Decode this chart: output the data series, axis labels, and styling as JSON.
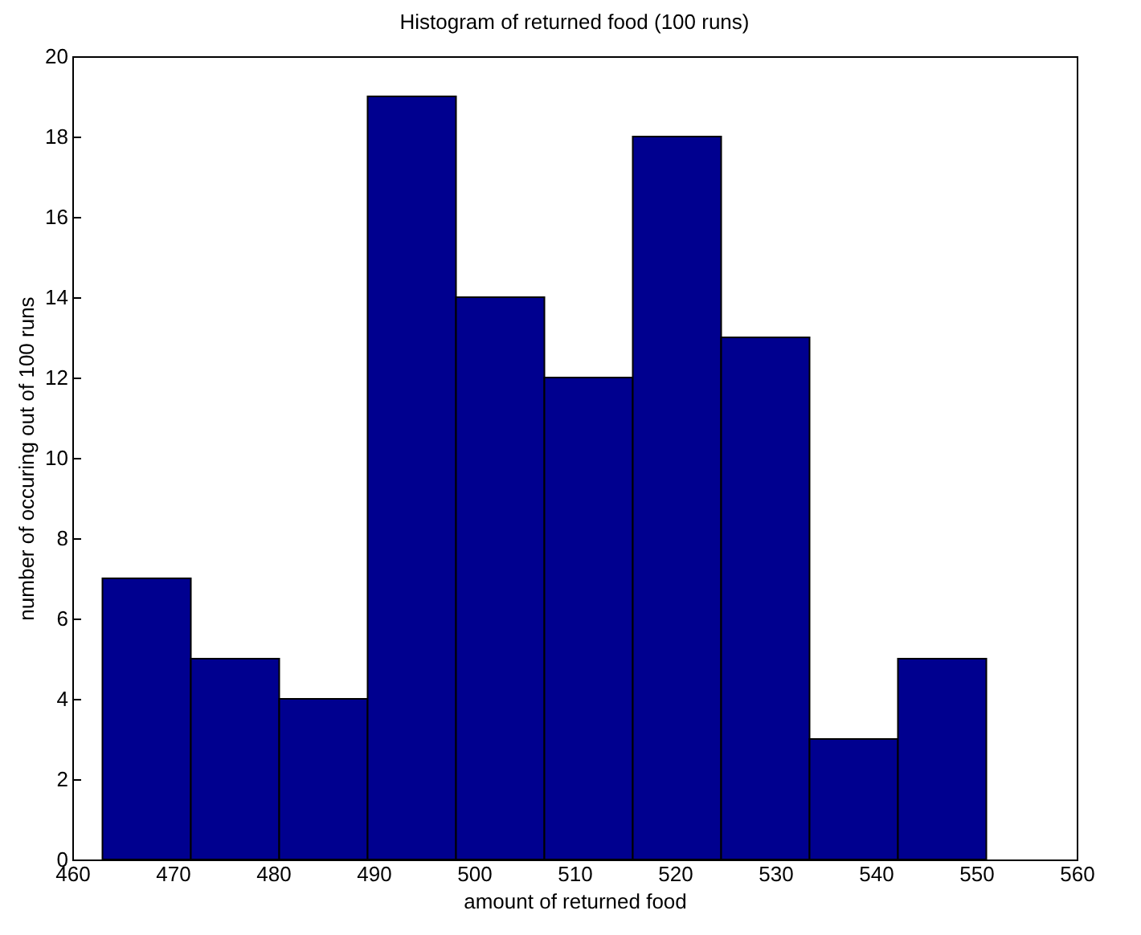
{
  "chart_data": {
    "type": "histogram",
    "title": "Histogram of returned food (100 runs)",
    "xlabel": "amount of returned food",
    "ylabel": "number of occuring out of 100 runs",
    "bins": [
      463.0,
      471.8,
      480.6,
      489.4,
      498.2,
      507.0,
      515.8,
      524.6,
      533.4,
      542.2,
      551.0
    ],
    "values": [
      7,
      5,
      4,
      19,
      14,
      12,
      18,
      13,
      3,
      5
    ],
    "color": "#00008f",
    "xlim": [
      460,
      560
    ],
    "xticks": [
      460,
      470,
      480,
      490,
      500,
      510,
      520,
      530,
      540,
      550,
      560
    ],
    "ylim": [
      0,
      20
    ],
    "yticks": [
      0,
      2,
      4,
      6,
      8,
      10,
      12,
      14,
      16,
      18,
      20
    ],
    "grid": false
  }
}
